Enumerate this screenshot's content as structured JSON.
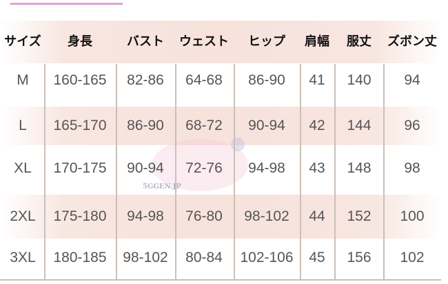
{
  "table": {
    "headers": [
      "サイズ",
      "身長",
      "バスト",
      "ウェスト",
      "ヒップ",
      "肩幅",
      "服丈",
      "ズボン丈"
    ],
    "rows": [
      [
        "M",
        "160-165",
        "82-86",
        "64-68",
        "86-90",
        "41",
        "140",
        "94"
      ],
      [
        "L",
        "165-170",
        "86-90",
        "68-72",
        "90-94",
        "42",
        "144",
        "96"
      ],
      [
        "XL",
        "170-175",
        "90-94",
        "72-76",
        "94-98",
        "43",
        "148",
        "98"
      ],
      [
        "2XL",
        "175-180",
        "94-98",
        "76-80",
        "98-102",
        "44",
        "152",
        "100"
      ],
      [
        "3XL",
        "180-185",
        "98-102",
        "80-84",
        "102-106",
        "45",
        "156",
        "102"
      ]
    ]
  },
  "watermark": {
    "text": "5GGEN.JP"
  },
  "colors": {
    "accent_line": "#d9a4d6",
    "band": "#f7e2dc",
    "grid": "#cbbfb6"
  }
}
